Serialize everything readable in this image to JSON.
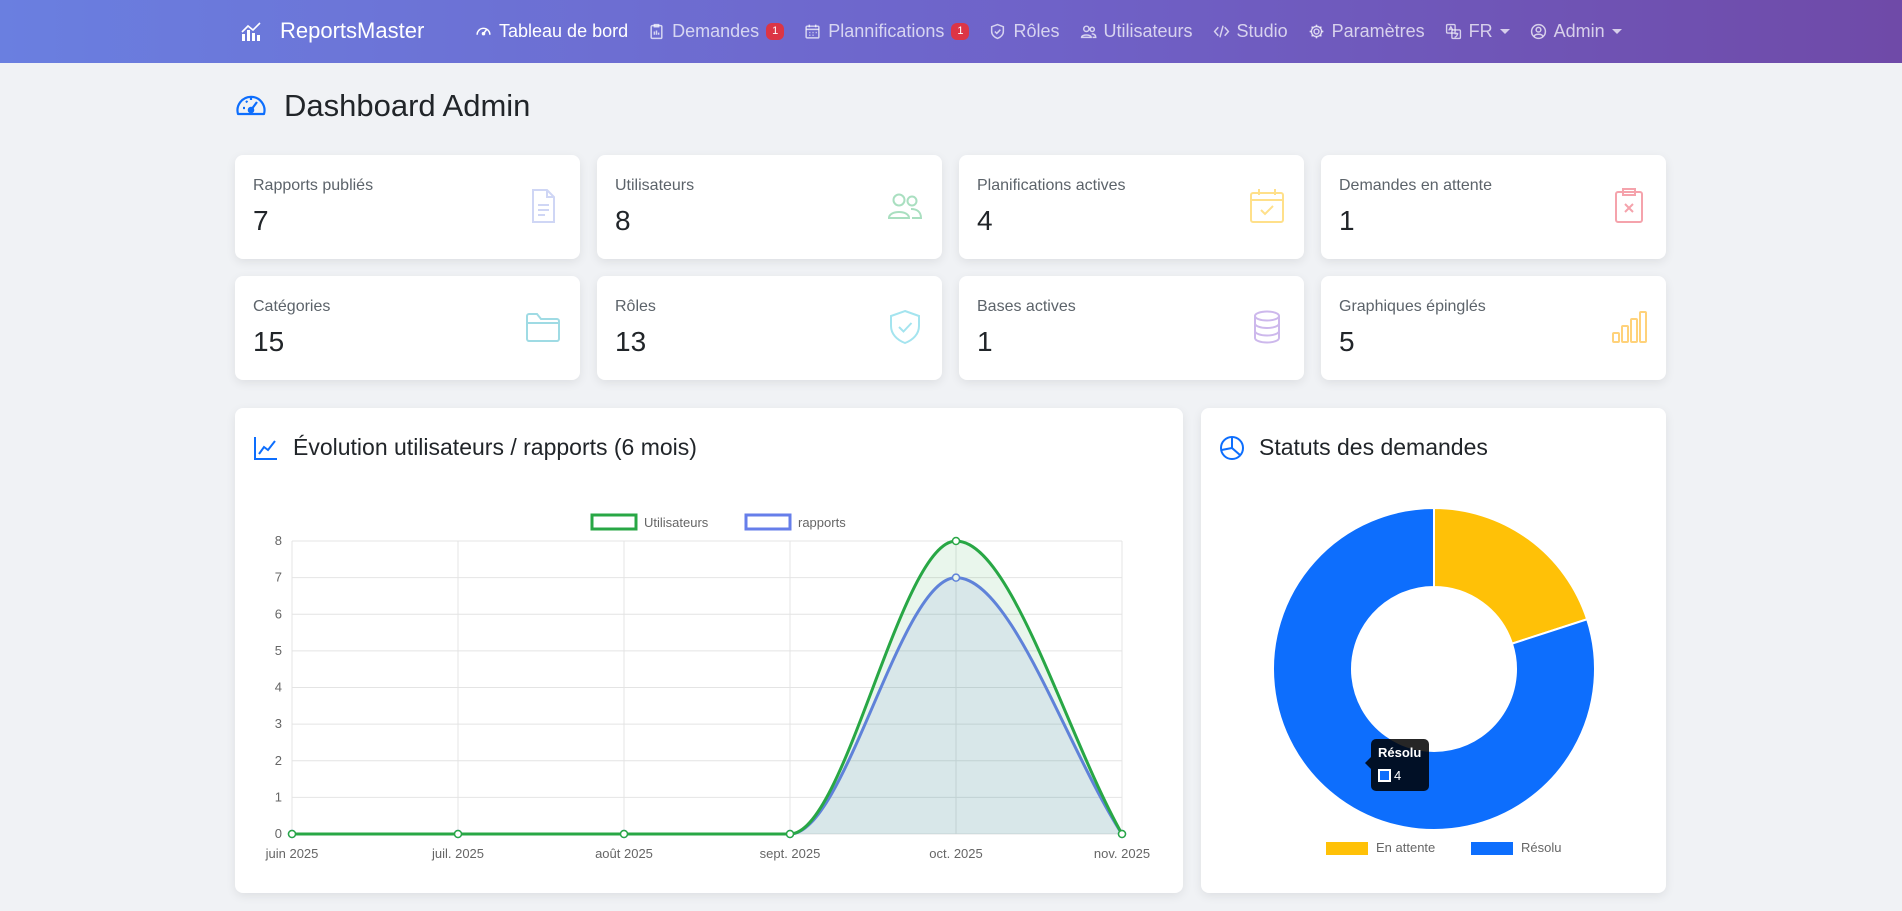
{
  "app": {
    "brand": "ReportsMaster"
  },
  "nav": {
    "items": [
      {
        "label": "Tableau de bord",
        "icon": "gauge-icon",
        "active": true
      },
      {
        "label": "Demandes",
        "icon": "clipboard-icon",
        "badge": "1"
      },
      {
        "label": "Plannifications",
        "icon": "calendar-icon",
        "badge": "1"
      },
      {
        "label": "Rôles",
        "icon": "shield-icon"
      },
      {
        "label": "Utilisateurs",
        "icon": "users-icon"
      },
      {
        "label": "Studio",
        "icon": "code-icon"
      },
      {
        "label": "Paramètres",
        "icon": "gear-icon"
      }
    ],
    "language": "FR",
    "user": "Admin"
  },
  "page": {
    "title": "Dashboard Admin"
  },
  "stats": [
    {
      "label": "Rapports publiés",
      "value": "7",
      "icon": "file-text-icon",
      "color": "#cfd6f5"
    },
    {
      "label": "Utilisateurs",
      "value": "8",
      "icon": "users-icon",
      "color": "#a9dfc0"
    },
    {
      "label": "Planifications actives",
      "value": "4",
      "icon": "calendar-check-icon",
      "color": "#ffe08a"
    },
    {
      "label": "Demandes en attente",
      "value": "1",
      "icon": "clipboard-x-icon",
      "color": "#f5a3ac"
    },
    {
      "label": "Catégories",
      "value": "15",
      "icon": "folder-icon",
      "color": "#9fdbe4"
    },
    {
      "label": "Rôles",
      "value": "13",
      "icon": "shield-check-icon",
      "color": "#a4e4ef"
    },
    {
      "label": "Bases actives",
      "value": "1",
      "icon": "database-icon",
      "color": "#cdb8ec"
    },
    {
      "label": "Graphiques épinglés",
      "value": "5",
      "icon": "bar-chart-icon",
      "color": "#ffd27a"
    }
  ],
  "line_card": {
    "title": "Évolution utilisateurs / rapports (6 mois)"
  },
  "donut_card": {
    "title": "Statuts des demandes"
  },
  "tooltip": {
    "title": "Résolu",
    "value": "4"
  },
  "chart_data": [
    {
      "type": "line",
      "title": "",
      "x": [
        "juin 2025",
        "juil. 2025",
        "août 2025",
        "sept. 2025",
        "oct. 2025",
        "nov. 2025"
      ],
      "series": [
        {
          "name": "Utilisateurs",
          "values": [
            0,
            0,
            0,
            0,
            8,
            0
          ],
          "color": "#28a745"
        },
        {
          "name": "rapports",
          "values": [
            0,
            0,
            0,
            0,
            7,
            0
          ],
          "color": "#667eea"
        }
      ],
      "ylim": [
        0,
        8
      ],
      "yticks": [
        "0",
        "1",
        "2",
        "3",
        "4",
        "5",
        "6",
        "7",
        "8"
      ],
      "grid": true,
      "legend": "top-center"
    },
    {
      "type": "pie",
      "categories": [
        "En attente",
        "Résolu"
      ],
      "values": [
        1,
        4
      ],
      "colors": [
        "#ffc107",
        "#0d6efd"
      ],
      "legend": "bottom-center"
    }
  ]
}
